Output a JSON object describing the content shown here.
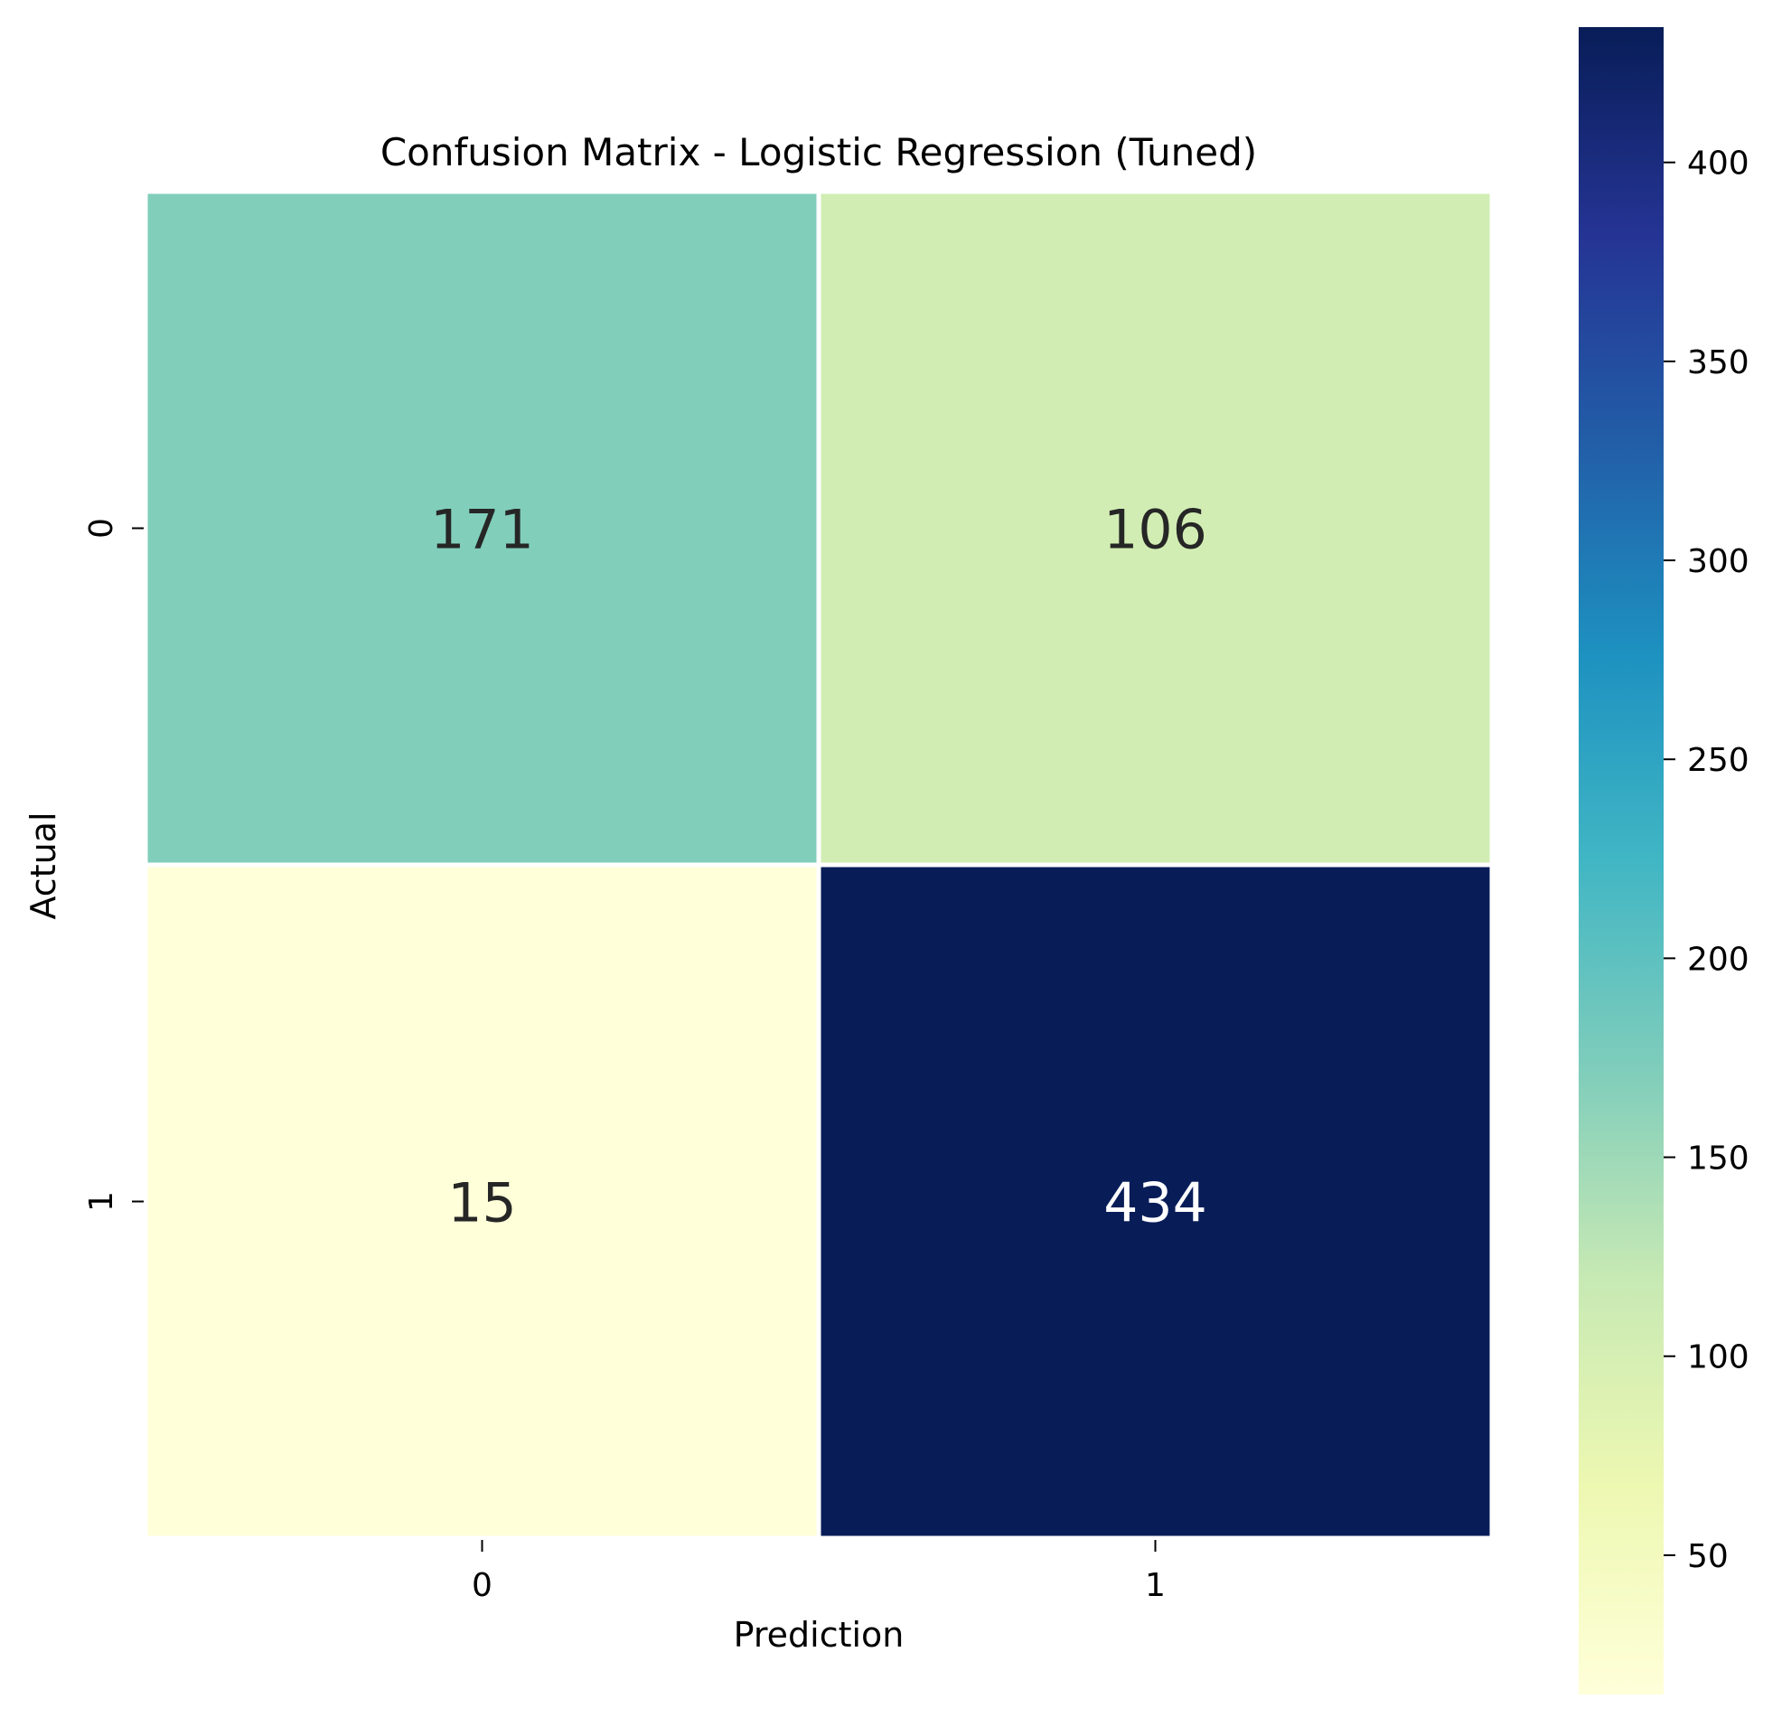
{
  "chart_data": {
    "type": "heatmap",
    "title": "Confusion Matrix - Logistic Regression (Tuned)",
    "xlabel": "Prediction",
    "ylabel": "Actual",
    "x_categories": [
      "0",
      "1"
    ],
    "y_categories": [
      "0",
      "1"
    ],
    "values": [
      [
        171,
        106
      ],
      [
        15,
        434
      ]
    ],
    "colormap": "YlGnBu",
    "color_range": [
      15,
      434
    ],
    "colorbar_ticks": [
      50,
      100,
      150,
      200,
      250,
      300,
      350,
      400
    ],
    "colorbar_stops": [
      "#ffffd9",
      "#edf8b1",
      "#c7e9b4",
      "#7fcdbb",
      "#41b6c4",
      "#1d91c0",
      "#225ea8",
      "#253494",
      "#081d58"
    ],
    "annotation_dark_color": "#262626",
    "annotation_light_color": "#ffffff"
  }
}
